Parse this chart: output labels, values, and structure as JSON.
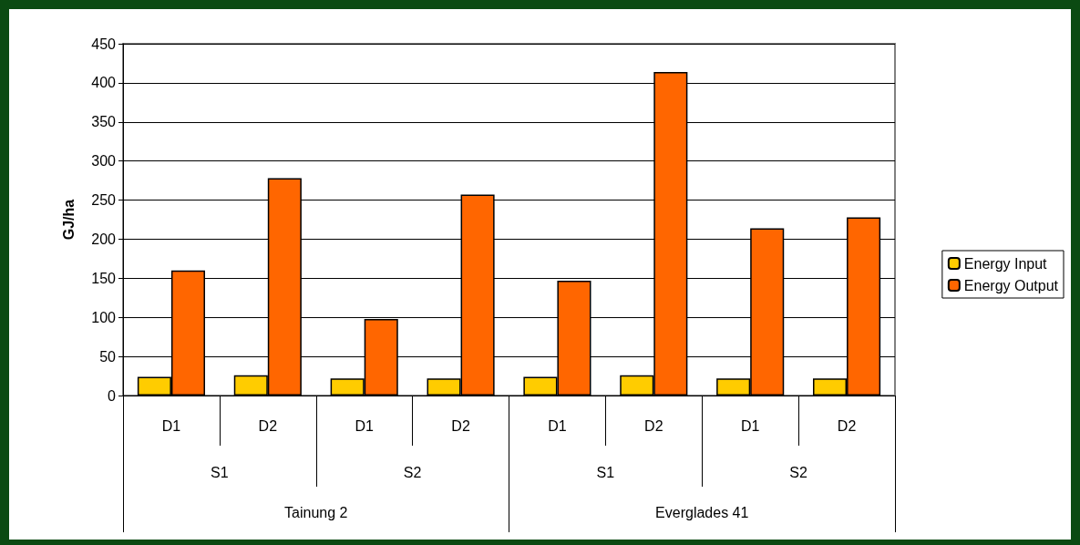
{
  "chart_data": {
    "type": "bar",
    "ylabel": "GJ/ha",
    "categories": [
      "D1",
      "D2",
      "D1",
      "D2",
      "D1",
      "D2",
      "D1",
      "D2"
    ],
    "annotations": [
      "S1",
      "S2",
      "S1",
      "S2",
      "Tainung 2",
      "Everglades 41"
    ],
    "series": [
      {
        "name": "Energy Input",
        "color": "#ffcc00",
        "values": [
          24,
          26,
          22,
          22,
          24,
          26,
          22,
          22
        ]
      },
      {
        "name": "Energy Output",
        "color": "#ff6600",
        "values": [
          160,
          278,
          98,
          257,
          147,
          414,
          214,
          228
        ]
      }
    ],
    "ylim": [
      0,
      450
    ],
    "yticks": [
      0,
      50,
      100,
      150,
      200,
      250,
      300,
      350,
      400,
      450
    ],
    "grid": "y",
    "legend": "right"
  }
}
